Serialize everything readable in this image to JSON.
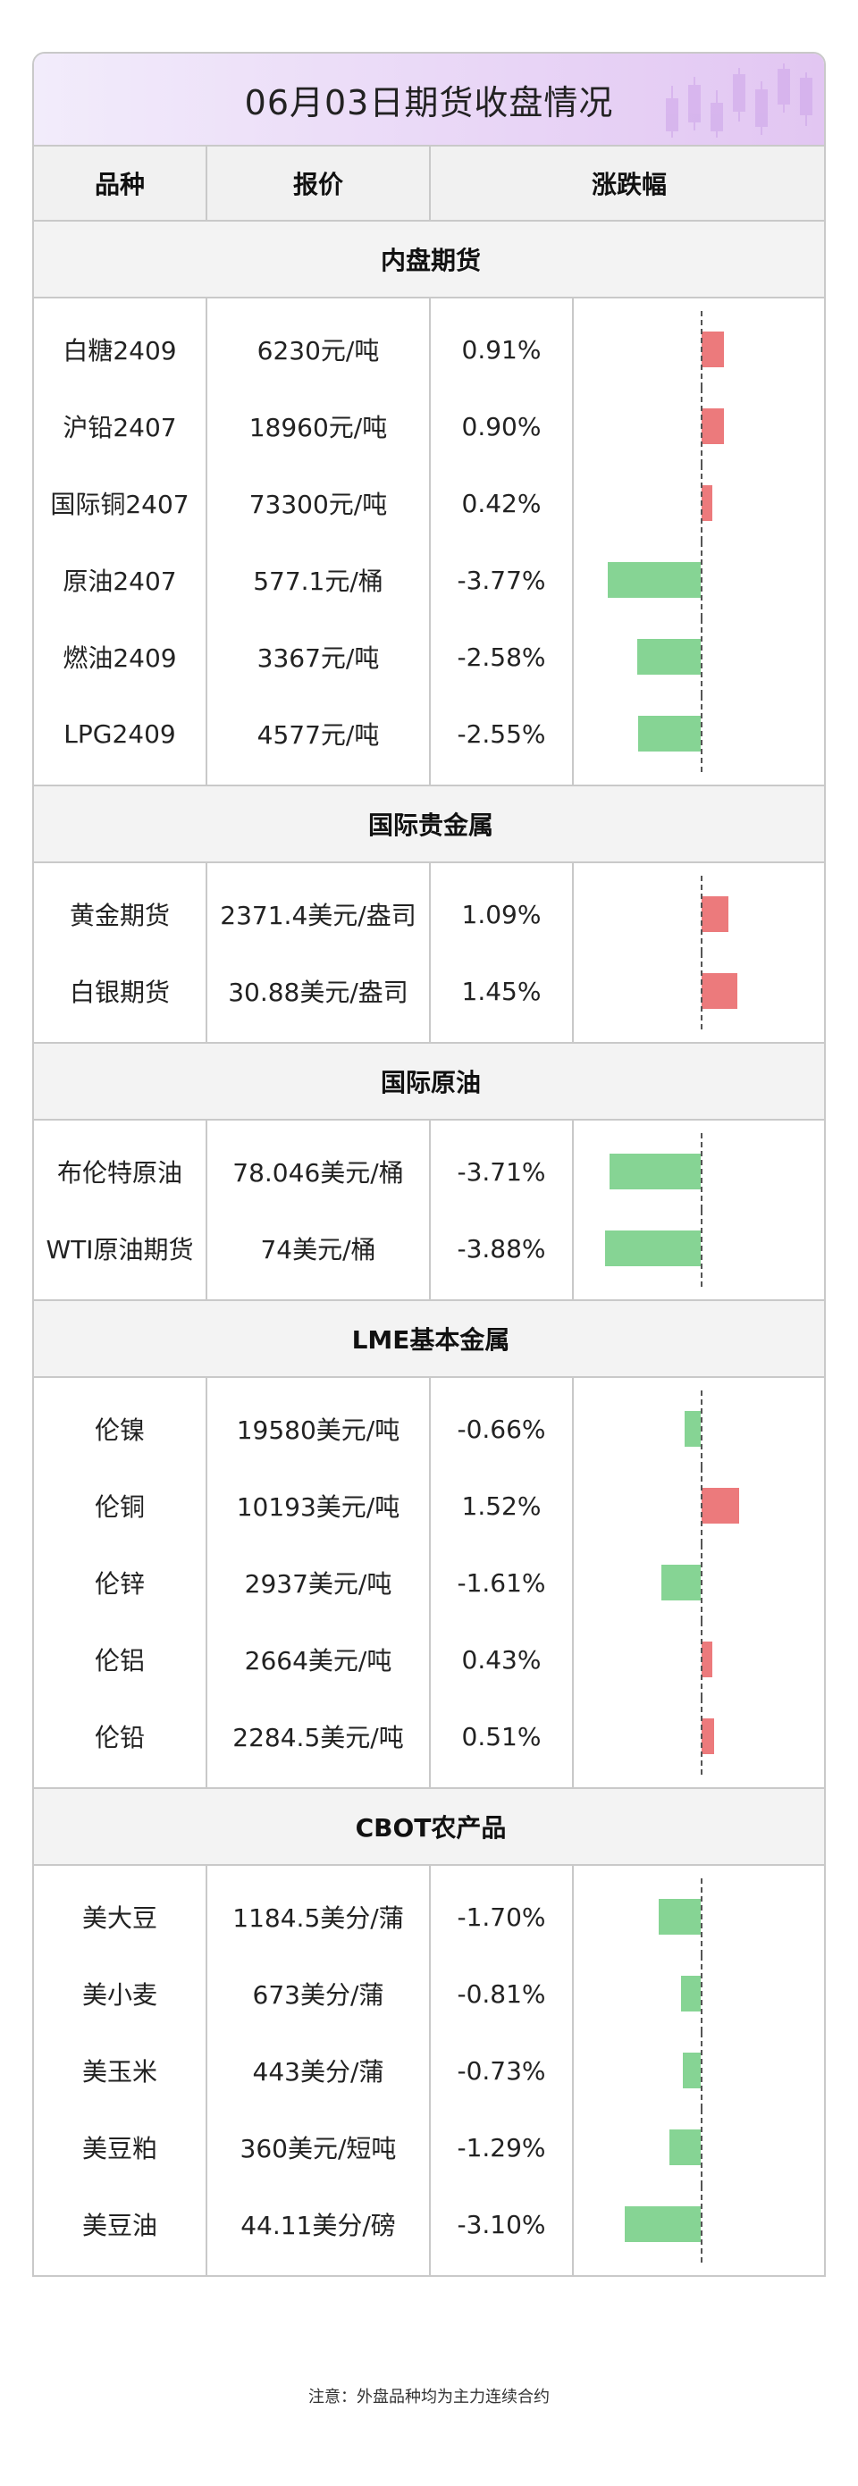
{
  "title": "06月03日期货收盘情况",
  "headers": [
    "品种",
    "报价",
    "涨跌幅"
  ],
  "colors": {
    "up": "#d4342e",
    "down": "#2b8a3e",
    "bar_up": "#ec7a7c",
    "bar_down": "#86d494"
  },
  "bar_scale_max_pct": 4.0,
  "sections": [
    {
      "name": "内盘期货",
      "rows": [
        {
          "name": "白糖2409",
          "price": "6230元/吨",
          "change": "0.91%",
          "pct": 0.91
        },
        {
          "name": "沪铅2407",
          "price": "18960元/吨",
          "change": "0.90%",
          "pct": 0.9
        },
        {
          "name": "国际铜2407",
          "price": "73300元/吨",
          "change": "0.42%",
          "pct": 0.42
        },
        {
          "name": "原油2407",
          "price": "577.1元/桶",
          "change": "-3.77%",
          "pct": -3.77
        },
        {
          "name": "燃油2409",
          "price": "3367元/吨",
          "change": "-2.58%",
          "pct": -2.58
        },
        {
          "name": "LPG2409",
          "price": "4577元/吨",
          "change": "-2.55%",
          "pct": -2.55
        }
      ]
    },
    {
      "name": "国际贵金属",
      "rows": [
        {
          "name": "黄金期货",
          "price": "2371.4美元/盎司",
          "change": "1.09%",
          "pct": 1.09
        },
        {
          "name": "白银期货",
          "price": "30.88美元/盎司",
          "change": "1.45%",
          "pct": 1.45
        }
      ]
    },
    {
      "name": "国际原油",
      "rows": [
        {
          "name": "布伦特原油",
          "price": "78.046美元/桶",
          "change": "-3.71%",
          "pct": -3.71
        },
        {
          "name": "WTI原油期货",
          "price": "74美元/桶",
          "change": "-3.88%",
          "pct": -3.88
        }
      ]
    },
    {
      "name": "LME基本金属",
      "rows": [
        {
          "name": "伦镍",
          "price": "19580美元/吨",
          "change": "-0.66%",
          "pct": -0.66
        },
        {
          "name": "伦铜",
          "price": "10193美元/吨",
          "change": "1.52%",
          "pct": 1.52
        },
        {
          "name": "伦锌",
          "price": "2937美元/吨",
          "change": "-1.61%",
          "pct": -1.61
        },
        {
          "name": "伦铝",
          "price": "2664美元/吨",
          "change": "0.43%",
          "pct": 0.43
        },
        {
          "name": "伦铅",
          "price": "2284.5美元/吨",
          "change": "0.51%",
          "pct": 0.51
        }
      ]
    },
    {
      "name": "CBOT农产品",
      "rows": [
        {
          "name": "美大豆",
          "price": "1184.5美分/蒲",
          "change": "-1.70%",
          "pct": -1.7
        },
        {
          "name": "美小麦",
          "price": "673美分/蒲",
          "change": "-0.81%",
          "pct": -0.81
        },
        {
          "name": "美玉米",
          "price": "443美分/蒲",
          "change": "-0.73%",
          "pct": -0.73
        },
        {
          "name": "美豆粕",
          "price": "360美元/短吨",
          "change": "-1.29%",
          "pct": -1.29
        },
        {
          "name": "美豆油",
          "price": "44.11美分/磅",
          "change": "-3.10%",
          "pct": -3.1
        }
      ]
    }
  ],
  "note": "注意：外盘品种均为主力连续合约"
}
